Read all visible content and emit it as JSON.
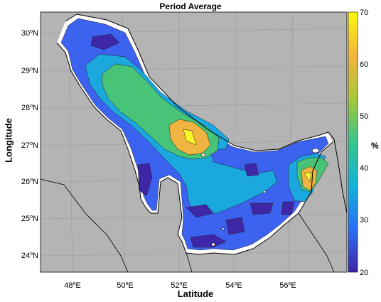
{
  "map": {
    "title": "Period Average",
    "x_axis_label": "Latitude",
    "y_axis_label": "Longitude",
    "lon_ticks": [
      "48",
      "50",
      "52",
      "54",
      "56"
    ],
    "lat_ticks": [
      "30",
      "29",
      "28",
      "27",
      "26",
      "25",
      "24"
    ],
    "deg_symbol": "o",
    "east_suffix": "E",
    "north_suffix": "N",
    "land_color": "#b4b4b4",
    "sea_outline_color": "#ffffff"
  },
  "colorbar": {
    "unit": "%",
    "ticks": [
      "70",
      "60",
      "50",
      "40",
      "30",
      "20"
    ],
    "min": 20,
    "max": 70,
    "colormap": [
      "#3e26a8",
      "#2b6ff5",
      "#12b3d8",
      "#36c58a",
      "#a9c63a",
      "#f4b53e",
      "#f9f90f"
    ]
  },
  "contour_levels": [
    {
      "level": "20-25",
      "color": "#3e26a8"
    },
    {
      "level": "25-35",
      "color": "#3c63f0"
    },
    {
      "level": "35-45",
      "color": "#1aa8df"
    },
    {
      "level": "45-55",
      "color": "#47c478"
    },
    {
      "level": "55-65",
      "color": "#f0b540"
    },
    {
      "level": "65-70",
      "color": "#f9f62a"
    }
  ]
}
